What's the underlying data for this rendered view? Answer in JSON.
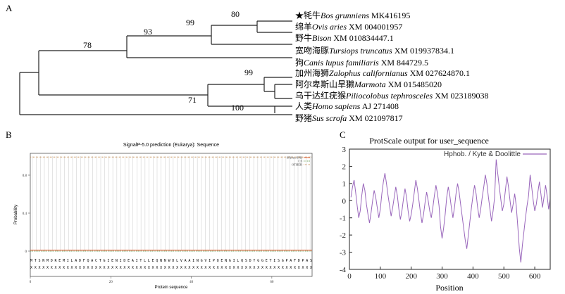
{
  "panel_labels": {
    "a": "A",
    "b": "B",
    "c": "C"
  },
  "tree": {
    "nodes_support": [
      "80",
      "99",
      "93",
      "78",
      "99",
      "71",
      "100"
    ],
    "taxa": [
      {
        "prefix": "★牦牛",
        "italic": "Bos grunniens",
        "suffix": " MK416195"
      },
      {
        "prefix": "绵羊",
        "italic": "Ovis aries",
        "suffix": " XM 004001957"
      },
      {
        "prefix": "野牛",
        "italic": "Bison",
        "suffix": " XM 010834447.1"
      },
      {
        "prefix": "宽吻海豚",
        "italic": "Tursiops truncatus",
        "suffix": " XM 019937834.1"
      },
      {
        "prefix": "狗",
        "italic": "Canis lupus familiaris",
        "suffix": " XM 844729.5"
      },
      {
        "prefix": "加州海狮",
        "italic": "Zalophus californianus",
        "suffix": " XM 027624870.1"
      },
      {
        "prefix": "阿尔卑斯山旱獭",
        "italic": "Marmota",
        "suffix": " XM 015485020"
      },
      {
        "prefix": "乌干达红疣猴",
        "italic": "Piliocolobus tephrosceles",
        "suffix": " XM 023189038"
      },
      {
        "prefix": "人类",
        "italic": "Homo sapiens",
        "suffix": " AJ 271408"
      },
      {
        "prefix": "野猪",
        "italic": "Sus scrofa",
        "suffix": " XM 021097817"
      }
    ]
  },
  "chart_data": [
    {
      "type": "line",
      "title": "SignalP-5.0 prediction (Eukarya):  Sequence",
      "xlabel": "Protein sequence",
      "ylabel": "Probability",
      "xlim": [
        0,
        70
      ],
      "ylim": [
        0,
        1
      ],
      "xticks": [
        "0",
        "20",
        "40",
        "60"
      ],
      "yticks": [
        "0",
        "0.4",
        "0.8"
      ],
      "legend": [
        "SP(Sec/SPI)",
        "CS",
        "OTHER"
      ],
      "colors": [
        "#e0633a",
        "#7aa86a",
        "#cc9966"
      ],
      "series": [
        {
          "name": "SP(Sec/SPI)",
          "values": [
            0.01
          ]
        },
        {
          "name": "CS",
          "values": [
            0.0
          ]
        },
        {
          "name": "OTHER",
          "values": [
            0.99
          ]
        }
      ],
      "sequence": "MTSNMDREMILADFQACTGIENIDEAITLLEQNNWDLVAAINGVIPQENGILQSDYGGETISGPAFDPAS",
      "annotation_row": "XXXXXXXXXXXXXXXXXXXXXXXXXXXXXXXXXXXXXXXXXXXXXXXXXXXXXXXXXXXXXXXXXXXXXX"
    },
    {
      "type": "line",
      "title": "ProtScale output for user_sequence",
      "xlabel": "Position",
      "ylabel": "",
      "legend": [
        "Hphob. / Kyte & Doolittle"
      ],
      "color": "#9966bb",
      "xlim": [
        0,
        650
      ],
      "ylim": [
        -4,
        3
      ],
      "xticks": [
        "0",
        "100",
        "200",
        "300",
        "400",
        "500",
        "600"
      ],
      "yticks": [
        "-4",
        "-3",
        "-2",
        "-1",
        "0",
        "1",
        "2",
        "3"
      ],
      "x_start": 5,
      "x_step": 5,
      "values": [
        0.2,
        0.8,
        1.2,
        0.5,
        -0.3,
        -1.0,
        -0.6,
        0.3,
        1.0,
        0.6,
        -0.2,
        -0.8,
        -1.3,
        -0.7,
        0.0,
        0.6,
        0.2,
        -0.4,
        -1.0,
        -0.5,
        0.4,
        1.1,
        1.6,
        1.0,
        0.3,
        -0.3,
        -0.9,
        -0.4,
        0.2,
        0.8,
        0.3,
        -0.5,
        -1.1,
        -0.6,
        0.1,
        0.7,
        0.2,
        -0.6,
        -1.2,
        -0.8,
        -0.2,
        0.5,
        1.2,
        0.7,
        0.0,
        -0.7,
        -1.3,
        -0.8,
        -0.1,
        0.5,
        0.0,
        -0.6,
        -1.0,
        -0.4,
        0.3,
        0.9,
        0.4,
        -0.3,
        -1.5,
        -2.2,
        -1.6,
        -0.8,
        0.2,
        0.8,
        0.3,
        -0.4,
        -1.0,
        -0.4,
        0.4,
        1.0,
        0.5,
        -0.2,
        -0.9,
        -1.6,
        -2.3,
        -2.8,
        -2.0,
        -1.2,
        -0.4,
        0.3,
        0.9,
        0.4,
        -0.4,
        -1.0,
        -0.5,
        0.2,
        0.8,
        1.5,
        1.0,
        0.2,
        -0.5,
        -1.2,
        -0.6,
        0.2,
        2.4,
        1.6,
        0.8,
        0.1,
        -0.6,
        -0.2,
        0.6,
        1.4,
        0.8,
        0.0,
        -0.7,
        -0.2,
        0.4,
        -0.3,
        -1.5,
        -2.8,
        -3.6,
        -2.6,
        -1.8,
        -1.0,
        -0.3,
        0.3,
        1.5,
        0.8,
        0.0,
        -0.6,
        -0.2,
        0.5,
        1.1,
        0.4,
        -0.4,
        0.2,
        0.9,
        0.3,
        -0.5,
        0.1
      ]
    }
  ]
}
